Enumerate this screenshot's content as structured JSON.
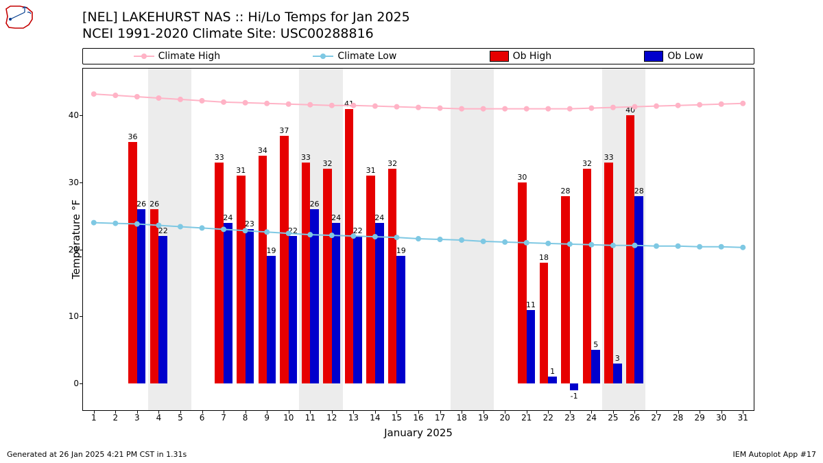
{
  "logo": {
    "outline_color": "#c40000",
    "detail_color": "#003a8c"
  },
  "title_line1": "[NEL] LAKEHURST NAS :: Hi/Lo Temps for Jan 2025",
  "title_line2": "NCEI 1991-2020 Climate Site: USC00288816",
  "legend": {
    "climate_high": "Climate High",
    "climate_low": "Climate Low",
    "ob_high": "Ob High",
    "ob_low": "Ob Low"
  },
  "colors": {
    "climate_high": "#ffb3c6",
    "climate_low": "#7ec8e3",
    "ob_high": "#e60000",
    "ob_low": "#0000cc",
    "weekend": "#ececec",
    "axis": "#000000",
    "text": "#000000",
    "background": "#ffffff"
  },
  "font": {
    "title_size": 19,
    "axis_label_size": 15,
    "tick_size": 12,
    "bar_label_size": 11,
    "legend_size": 14
  },
  "chart": {
    "type": "bar+line",
    "xlabel": "January 2025",
    "ylabel": "Temperature °F",
    "ylim": [
      -4,
      47
    ],
    "yticks": [
      0,
      10,
      20,
      30,
      40
    ],
    "days": [
      1,
      2,
      3,
      4,
      5,
      6,
      7,
      8,
      9,
      10,
      11,
      12,
      13,
      14,
      15,
      16,
      17,
      18,
      19,
      20,
      21,
      22,
      23,
      24,
      25,
      26,
      27,
      28,
      29,
      30,
      31
    ],
    "weekend_bands": [
      [
        4,
        5
      ],
      [
        11,
        12
      ],
      [
        18,
        19
      ],
      [
        25,
        26
      ]
    ],
    "climate_high": [
      43.2,
      43.0,
      42.8,
      42.6,
      42.4,
      42.2,
      42.0,
      41.9,
      41.8,
      41.7,
      41.6,
      41.5,
      41.5,
      41.4,
      41.3,
      41.2,
      41.1,
      41.0,
      41.0,
      41.0,
      41.0,
      41.0,
      41.0,
      41.1,
      41.2,
      41.3,
      41.4,
      41.5,
      41.6,
      41.7,
      41.8
    ],
    "climate_low": [
      24.0,
      23.9,
      23.8,
      23.6,
      23.4,
      23.2,
      23.0,
      22.8,
      22.6,
      22.4,
      22.2,
      22.1,
      22.0,
      21.9,
      21.8,
      21.6,
      21.5,
      21.4,
      21.2,
      21.1,
      21.0,
      20.9,
      20.8,
      20.7,
      20.6,
      20.6,
      20.5,
      20.5,
      20.4,
      20.4,
      20.3
    ],
    "ob_high": {
      "3": 36,
      "4": 26,
      "7": 33,
      "8": 31,
      "9": 34,
      "10": 37,
      "11": 33,
      "12": 32,
      "13": 41,
      "14": 31,
      "15": 32,
      "21": 30,
      "22": 18,
      "23": 28,
      "24": 32,
      "25": 33,
      "26": 40
    },
    "ob_low": {
      "3": 26,
      "4": 22,
      "7": 24,
      "8": 23,
      "9": 19,
      "10": 22,
      "11": 26,
      "12": 24,
      "13": 22,
      "14": 24,
      "15": 19,
      "21": 11,
      "22": 1,
      "23": -1,
      "24": 5,
      "25": 3,
      "26": 28
    },
    "bar_group_width": 0.8,
    "line_width": 2,
    "marker_radius": 4
  },
  "footer_left": "Generated at 26 Jan 2025 4:21 PM CST in 1.31s",
  "footer_right": "IEM Autoplot App #17"
}
